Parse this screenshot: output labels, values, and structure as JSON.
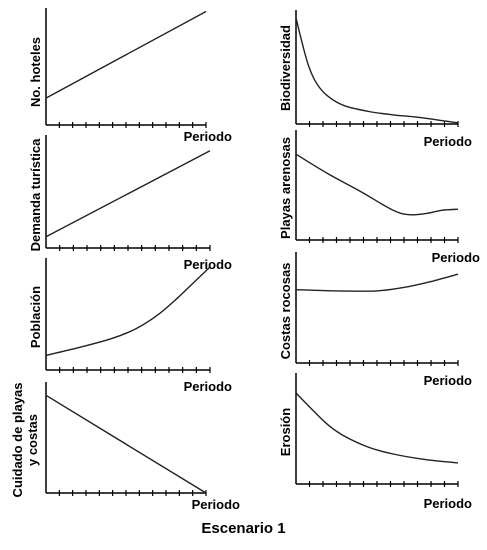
{
  "figure": {
    "caption": "Escenario 1"
  },
  "chart_data": [
    {
      "type": "line",
      "title": "",
      "ylabel": "No. hoteles",
      "xlabel": "Periodo",
      "x_ticks": 12,
      "xlim": [
        0,
        1
      ],
      "ylim": [
        0,
        1
      ],
      "grid": false,
      "series": [
        {
          "x": [
            0,
            1
          ],
          "y": [
            0.23,
            0.97
          ]
        }
      ]
    },
    {
      "type": "line",
      "title": "",
      "ylabel": "Demanda turística",
      "xlabel": "Periodo",
      "x_ticks": 12,
      "xlim": [
        0,
        1
      ],
      "ylim": [
        0,
        1
      ],
      "grid": false,
      "series": [
        {
          "x": [
            0,
            1
          ],
          "y": [
            0.1,
            0.86
          ]
        }
      ]
    },
    {
      "type": "line",
      "title": "",
      "ylabel": "Población",
      "xlabel": "Periodo",
      "x_ticks": 12,
      "xlim": [
        0,
        1
      ],
      "ylim": [
        0,
        1
      ],
      "grid": false,
      "series": [
        {
          "x": [
            0,
            0.2,
            0.4,
            0.55,
            0.68,
            0.8,
            0.9,
            1
          ],
          "y": [
            0.13,
            0.2,
            0.28,
            0.37,
            0.49,
            0.64,
            0.78,
            0.92
          ]
        }
      ]
    },
    {
      "type": "line",
      "title": "",
      "ylabel": "Cuidado de playas y costas",
      "xlabel": "Periodo",
      "x_ticks": 12,
      "xlim": [
        0,
        1
      ],
      "ylim": [
        0,
        1
      ],
      "grid": false,
      "series": [
        {
          "x": [
            0,
            1
          ],
          "y": [
            0.88,
            0.0
          ]
        }
      ]
    },
    {
      "type": "line",
      "title": "",
      "ylabel": "Biodiversidad",
      "xlabel": "Periodo",
      "x_ticks": 12,
      "xlim": [
        0,
        1
      ],
      "ylim": [
        0,
        1
      ],
      "grid": false,
      "series": [
        {
          "x": [
            0,
            0.04,
            0.08,
            0.13,
            0.2,
            0.3,
            0.45,
            0.6,
            0.75,
            0.9,
            1
          ],
          "y": [
            0.93,
            0.7,
            0.5,
            0.35,
            0.24,
            0.16,
            0.11,
            0.08,
            0.06,
            0.03,
            0.01
          ]
        }
      ]
    },
    {
      "type": "line",
      "title": "",
      "ylabel": "Playas arenosas",
      "xlabel": "Periodo",
      "x_ticks": 12,
      "xlim": [
        0,
        1
      ],
      "ylim": [
        0,
        1
      ],
      "grid": false,
      "series": [
        {
          "x": [
            0,
            0.2,
            0.4,
            0.6,
            0.7,
            0.8,
            0.9,
            1
          ],
          "y": [
            0.78,
            0.6,
            0.44,
            0.27,
            0.23,
            0.24,
            0.27,
            0.28
          ]
        }
      ]
    },
    {
      "type": "line",
      "title": "",
      "ylabel": "Costas rocosas",
      "xlabel": "Periodo",
      "x_ticks": 12,
      "xlim": [
        0,
        1
      ],
      "ylim": [
        0,
        1
      ],
      "grid": false,
      "series": [
        {
          "x": [
            0,
            0.25,
            0.5,
            0.7,
            0.85,
            1
          ],
          "y": [
            0.66,
            0.65,
            0.65,
            0.69,
            0.74,
            0.8
          ]
        }
      ]
    },
    {
      "type": "line",
      "title": "",
      "ylabel": "Erosión",
      "xlabel": "Periodo",
      "x_ticks": 12,
      "xlim": [
        0,
        1
      ],
      "ylim": [
        0,
        1
      ],
      "grid": false,
      "series": [
        {
          "x": [
            0,
            0.1,
            0.2,
            0.3,
            0.45,
            0.6,
            0.8,
            1
          ],
          "y": [
            0.82,
            0.67,
            0.53,
            0.43,
            0.33,
            0.27,
            0.22,
            0.19
          ]
        }
      ]
    }
  ]
}
